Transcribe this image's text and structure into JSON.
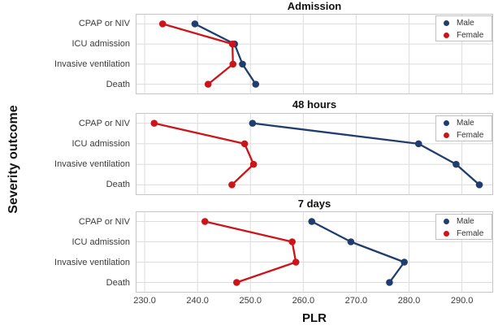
{
  "figure": {
    "x_axis_title": "PLR",
    "y_axis_title": "Severity outcome"
  },
  "chart_data": {
    "type": "line",
    "markers": true,
    "orientation": "horizontal-categorical",
    "title": "",
    "xlabel": "PLR",
    "ylabel": "Severity outcome",
    "grid": true,
    "legend_position": "top-right",
    "categories": [
      "CPAP or NIV",
      "ICU admission",
      "Invasive ventilation",
      "Death"
    ],
    "xlim": [
      228.3,
      295.9
    ],
    "x_ticks": [
      230.0,
      240.0,
      250.0,
      260.0,
      270.0,
      280.0,
      290.0
    ],
    "x_tick_labels": [
      "230.0",
      "240.0",
      "250.0",
      "260.0",
      "270.0",
      "280.0",
      "290.0"
    ],
    "series_names": [
      "Male",
      "Female"
    ],
    "series_colors": {
      "Male": "#1f3d6d",
      "Female": "#cd1519"
    },
    "grid_color": "#dcdcdc",
    "border_color": "#c6c6c6",
    "panels": [
      {
        "title": "Admission",
        "series": [
          {
            "name": "Male",
            "values": [
              239.5,
              247.0,
              248.5,
              251.0
            ]
          },
          {
            "name": "Female",
            "values": [
              233.4,
              246.6,
              246.7,
              242.0
            ]
          }
        ]
      },
      {
        "title": "48 hours",
        "series": [
          {
            "name": "Male",
            "values": [
              250.4,
              281.8,
              288.9,
              293.3
            ]
          },
          {
            "name": "Female",
            "values": [
              231.8,
              248.9,
              250.6,
              246.5
            ]
          }
        ]
      },
      {
        "title": "7 days",
        "series": [
          {
            "name": "Male",
            "values": [
              261.6,
              269.0,
              279.1,
              276.3
            ]
          },
          {
            "name": "Female",
            "values": [
              241.4,
              257.9,
              258.6,
              247.4
            ]
          }
        ]
      }
    ]
  }
}
